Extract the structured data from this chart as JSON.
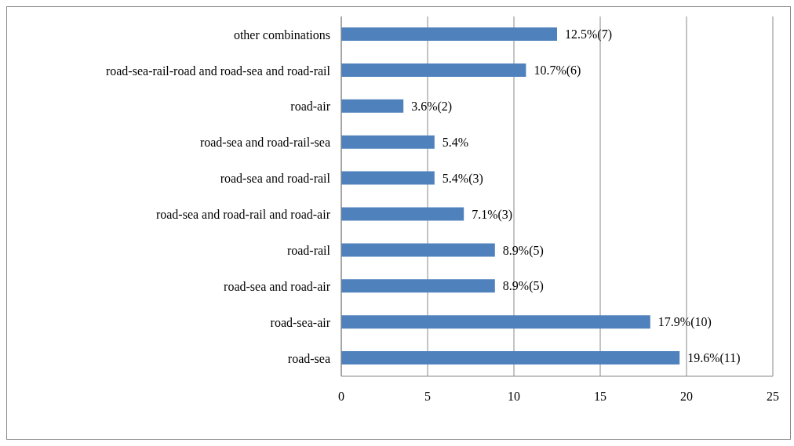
{
  "chart_data": {
    "type": "bar",
    "orientation": "horizontal",
    "categories": [
      "other combinations",
      "road-sea-rail-road and road-sea and road-rail",
      "road-air",
      "road-sea and road-rail-sea",
      "road-sea and road-rail",
      "road-sea and road-rail and road-air",
      "road-rail",
      "road-sea and road-air",
      "road-sea-air",
      "road-sea"
    ],
    "values": [
      12.5,
      10.7,
      3.6,
      5.4,
      5.4,
      7.1,
      8.9,
      8.9,
      17.9,
      19.6
    ],
    "value_labels": [
      "12.5%(7)",
      "10.7%(6)",
      "3.6%(2)",
      "5.4%",
      "5.4%(3)",
      "7.1%(3)",
      "8.9%(5)",
      "8.9%(5)",
      "17.9%(10)",
      "19.6%(11)"
    ],
    "color": "#4f81bd",
    "xlim": [
      0,
      25
    ],
    "xticks": [
      0,
      5,
      10,
      15,
      20,
      25
    ],
    "grid": "x",
    "legend": false
  }
}
